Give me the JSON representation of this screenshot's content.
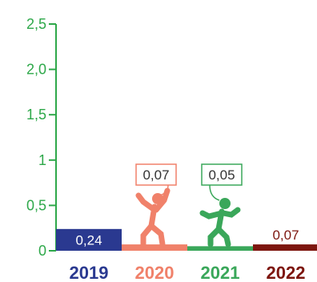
{
  "chart_data": {
    "type": "bar",
    "categories": [
      "2019",
      "2020",
      "2021",
      "2022"
    ],
    "values": [
      0.24,
      0.07,
      0.05,
      0.07
    ],
    "value_labels": [
      "0,24",
      "0,07",
      "0,05",
      "0,07"
    ],
    "title": "",
    "xlabel": "",
    "ylabel": "",
    "ylim": [
      0,
      2.5
    ],
    "yticks": [
      0,
      0.5,
      1,
      1.5,
      2,
      2.5
    ],
    "ytick_labels": [
      "0",
      "0,5",
      "1",
      "1,5",
      "2,0",
      "2,5"
    ],
    "grid": false,
    "colors": [
      "#2a3990",
      "#f0816a",
      "#3aa75a",
      "#7d160f"
    ],
    "label_colors": [
      "#ffffff",
      "#f0816a",
      "#3aa75a",
      "#ffffff"
    ],
    "axis_color": "#2ea84a",
    "icons": [
      "",
      "person-dancing-icon",
      "person-dancing-icon",
      ""
    ]
  }
}
